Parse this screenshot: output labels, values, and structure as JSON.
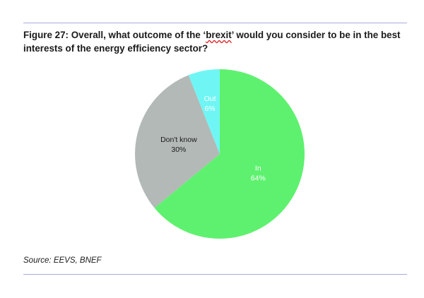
{
  "figure": {
    "title_prefix": "Figure 27:  Overall, what outcome of the ‘",
    "title_keyword": "brexit",
    "title_line1_suffix": "’ would you consider to be in the best",
    "title_line2": "interests of the energy efficiency sector?",
    "source": "Source: EEVS, BNEF"
  },
  "chart_data": {
    "type": "pie",
    "title": "Overall, what outcome of the ‘brexit’ would you consider to be in the best interests of the energy efficiency sector?",
    "slices": [
      {
        "name": "In",
        "value": 64,
        "label": "64%",
        "color": "#5ef16f",
        "text_color": "#ffffff"
      },
      {
        "name": "Don't know",
        "value": 30,
        "label": "30%",
        "color": "#b3b9b7",
        "text_color": "#1a1a1a"
      },
      {
        "name": "Out",
        "value": 6,
        "label": "6%",
        "color": "#6ff6f4",
        "text_color": "#ffffff"
      }
    ],
    "start_angle_deg": 0,
    "direction": "clockwise",
    "legend": "none"
  }
}
